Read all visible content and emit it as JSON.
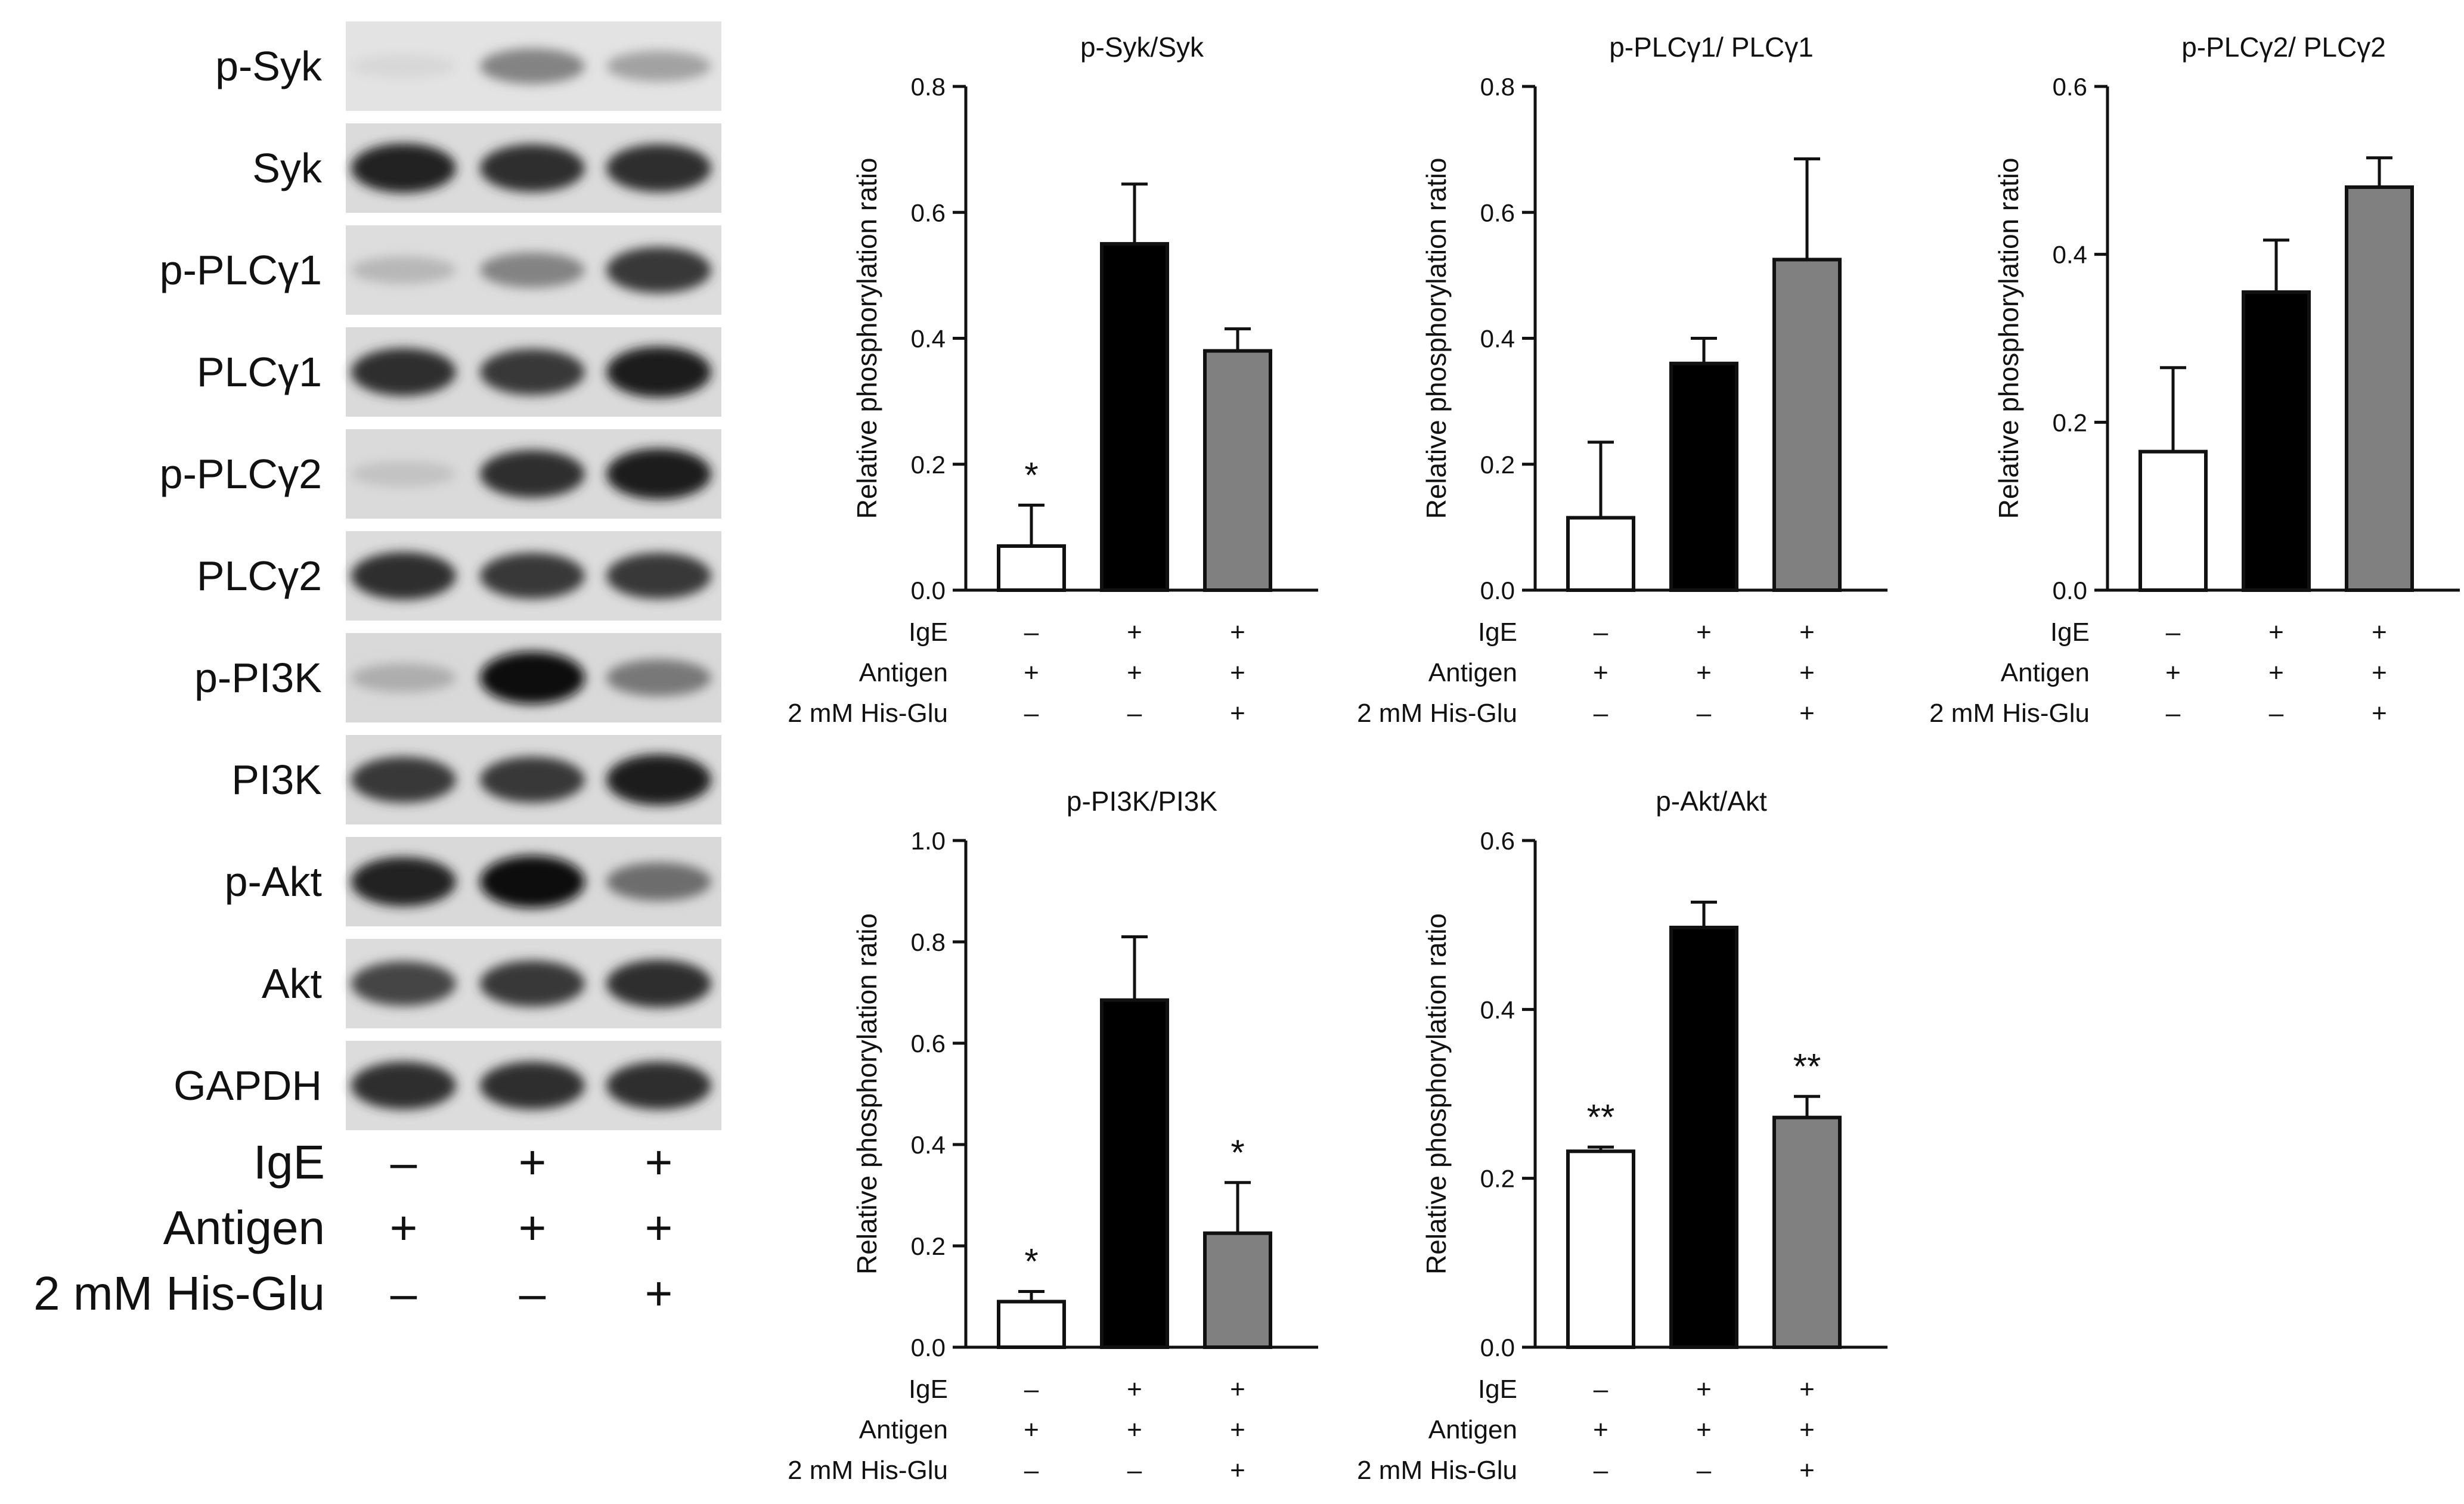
{
  "blots": {
    "lane_count": 3,
    "rows": [
      {
        "label": "p-Syk",
        "intensities": [
          0.05,
          0.45,
          0.3
        ]
      },
      {
        "label": "Syk",
        "intensities": [
          0.9,
          0.85,
          0.85
        ]
      },
      {
        "label": "p-PLCγ1",
        "intensities": [
          0.2,
          0.45,
          0.8
        ]
      },
      {
        "label": "PLCγ1",
        "intensities": [
          0.85,
          0.8,
          0.95
        ]
      },
      {
        "label": "p-PLCγ2",
        "intensities": [
          0.15,
          0.85,
          0.95
        ]
      },
      {
        "label": "PLCγ2",
        "intensities": [
          0.85,
          0.8,
          0.8
        ]
      },
      {
        "label": "p-PI3K",
        "intensities": [
          0.25,
          1.0,
          0.5
        ]
      },
      {
        "label": "PI3K",
        "intensities": [
          0.8,
          0.8,
          0.95
        ]
      },
      {
        "label": "p-Akt",
        "intensities": [
          0.9,
          1.0,
          0.55
        ]
      },
      {
        "label": "Akt",
        "intensities": [
          0.75,
          0.8,
          0.85
        ]
      },
      {
        "label": "GAPDH",
        "intensities": [
          0.85,
          0.85,
          0.85
        ]
      }
    ],
    "conditions": [
      {
        "label": "IgE",
        "signs": [
          "–",
          "+",
          "+"
        ]
      },
      {
        "label": "Antigen",
        "signs": [
          "+",
          "+",
          "+"
        ]
      },
      {
        "label": "2 mM His-Glu",
        "signs": [
          "–",
          "–",
          "+"
        ]
      }
    ]
  },
  "chart_data": [
    {
      "type": "bar",
      "title": "p-Syk/Syk",
      "ylabel": "Relative phosphorylation ratio",
      "ylim": [
        0,
        0.8
      ],
      "yticks": [
        0.0,
        0.2,
        0.4,
        0.6,
        0.8
      ],
      "ytick_labels": [
        "0.0",
        "0.2",
        "0.4",
        "0.6",
        "0.8"
      ],
      "values": [
        0.07,
        0.55,
        0.38
      ],
      "errors": [
        0.065,
        0.095,
        0.035
      ],
      "annotations": [
        "*",
        "",
        ""
      ],
      "bar_colors": [
        "#ffffff",
        "#000000",
        "#808080"
      ],
      "conditions": [
        {
          "label": "IgE",
          "signs": [
            "–",
            "+",
            "+"
          ]
        },
        {
          "label": "Antigen",
          "signs": [
            "+",
            "+",
            "+"
          ]
        },
        {
          "label": "2 mM His-Glu",
          "signs": [
            "–",
            "–",
            "+"
          ]
        }
      ]
    },
    {
      "type": "bar",
      "title": "p-PLCγ1/ PLCγ1",
      "ylabel": "Relative phosphorylation ratio",
      "ylim": [
        0,
        0.8
      ],
      "yticks": [
        0.0,
        0.2,
        0.4,
        0.6,
        0.8
      ],
      "ytick_labels": [
        "0.0",
        "0.2",
        "0.4",
        "0.6",
        "0.8"
      ],
      "values": [
        0.115,
        0.36,
        0.525
      ],
      "errors": [
        0.12,
        0.04,
        0.16
      ],
      "annotations": [
        "",
        "",
        ""
      ],
      "bar_colors": [
        "#ffffff",
        "#000000",
        "#808080"
      ],
      "conditions": [
        {
          "label": "IgE",
          "signs": [
            "–",
            "+",
            "+"
          ]
        },
        {
          "label": "Antigen",
          "signs": [
            "+",
            "+",
            "+"
          ]
        },
        {
          "label": "2 mM His-Glu",
          "signs": [
            "–",
            "–",
            "+"
          ]
        }
      ]
    },
    {
      "type": "bar",
      "title": "p-PLCγ2/ PLCγ2",
      "ylabel": "Relative phosphorylation ratio",
      "ylim": [
        0,
        0.6
      ],
      "yticks": [
        0.0,
        0.2,
        0.4,
        0.6
      ],
      "ytick_labels": [
        "0.0",
        "0.2",
        "0.4",
        "0.6"
      ],
      "values": [
        0.165,
        0.355,
        0.48
      ],
      "errors": [
        0.1,
        0.062,
        0.035
      ],
      "annotations": [
        "",
        "",
        ""
      ],
      "bar_colors": [
        "#ffffff",
        "#000000",
        "#808080"
      ],
      "conditions": [
        {
          "label": "IgE",
          "signs": [
            "–",
            "+",
            "+"
          ]
        },
        {
          "label": "Antigen",
          "signs": [
            "+",
            "+",
            "+"
          ]
        },
        {
          "label": "2 mM His-Glu",
          "signs": [
            "–",
            "–",
            "+"
          ]
        }
      ]
    },
    {
      "type": "bar",
      "title": "p-PI3K/PI3K",
      "ylabel": "Relative phosphorylation ratio",
      "ylim": [
        0,
        1.0
      ],
      "yticks": [
        0.0,
        0.2,
        0.4,
        0.6,
        0.8,
        1.0
      ],
      "ytick_labels": [
        "0.0",
        "0.2",
        "0.4",
        "0.6",
        "0.8",
        "1.0"
      ],
      "values": [
        0.09,
        0.685,
        0.225
      ],
      "errors": [
        0.02,
        0.125,
        0.1
      ],
      "annotations": [
        "*",
        "",
        "*"
      ],
      "bar_colors": [
        "#ffffff",
        "#000000",
        "#808080"
      ],
      "conditions": [
        {
          "label": "IgE",
          "signs": [
            "–",
            "+",
            "+"
          ]
        },
        {
          "label": "Antigen",
          "signs": [
            "+",
            "+",
            "+"
          ]
        },
        {
          "label": "2 mM His-Glu",
          "signs": [
            "–",
            "–",
            "+"
          ]
        }
      ]
    },
    {
      "type": "bar",
      "title": "p-Akt/Akt",
      "ylabel": "Relative phosphorylation ratio",
      "ylim": [
        0,
        0.6
      ],
      "yticks": [
        0.0,
        0.2,
        0.4,
        0.6
      ],
      "ytick_labels": [
        "0.0",
        "0.2",
        "0.4",
        "0.6"
      ],
      "values": [
        0.232,
        0.497,
        0.272
      ],
      "errors": [
        0.005,
        0.03,
        0.025
      ],
      "annotations": [
        "**",
        "",
        "**"
      ],
      "bar_colors": [
        "#ffffff",
        "#000000",
        "#808080"
      ],
      "conditions": [
        {
          "label": "IgE",
          "signs": [
            "–",
            "+",
            "+"
          ]
        },
        {
          "label": "Antigen",
          "signs": [
            "+",
            "+",
            "+"
          ]
        },
        {
          "label": "2 mM His-Glu",
          "signs": [
            "–",
            "–",
            "+"
          ]
        }
      ]
    }
  ]
}
